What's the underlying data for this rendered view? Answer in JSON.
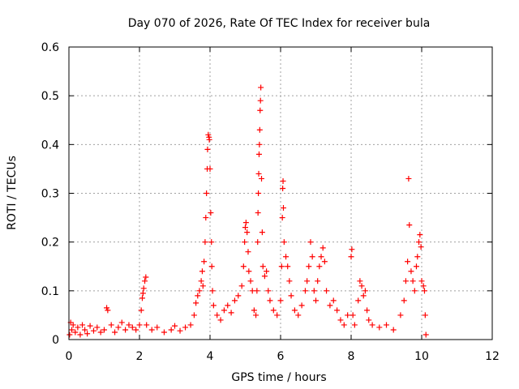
{
  "chart_data": {
    "type": "scatter",
    "title": "Day 070 of 2026, Rate Of TEC Index for receiver bula",
    "xlabel": "GPS time / hours",
    "ylabel": "ROTI / TECUs",
    "xlim": [
      0,
      12
    ],
    "ylim": [
      0,
      0.6
    ],
    "xticks": [
      "0",
      "2",
      "4",
      "6",
      "8",
      "10",
      "12"
    ],
    "yticks": [
      "0",
      "0.1",
      "0.2",
      "0.3",
      "0.4",
      "0.5",
      "0.6"
    ],
    "grid": true,
    "marker": "plus",
    "color": "#ff0000",
    "points": [
      [
        0.02,
        0.01
      ],
      [
        0.05,
        0.035
      ],
      [
        0.08,
        0.02
      ],
      [
        0.12,
        0.03
      ],
      [
        0.18,
        0.015
      ],
      [
        0.25,
        0.025
      ],
      [
        0.32,
        0.01
      ],
      [
        0.38,
        0.03
      ],
      [
        0.45,
        0.02
      ],
      [
        0.52,
        0.012
      ],
      [
        0.6,
        0.028
      ],
      [
        0.7,
        0.018
      ],
      [
        0.8,
        0.025
      ],
      [
        0.9,
        0.015
      ],
      [
        1.0,
        0.02
      ],
      [
        1.07,
        0.065
      ],
      [
        1.1,
        0.06
      ],
      [
        1.2,
        0.03
      ],
      [
        1.3,
        0.015
      ],
      [
        1.4,
        0.025
      ],
      [
        1.5,
        0.035
      ],
      [
        1.6,
        0.02
      ],
      [
        1.7,
        0.03
      ],
      [
        1.8,
        0.025
      ],
      [
        1.9,
        0.02
      ],
      [
        2.0,
        0.03
      ],
      [
        2.05,
        0.06
      ],
      [
        2.08,
        0.085
      ],
      [
        2.12,
        0.105
      ],
      [
        2.15,
        0.12
      ],
      [
        2.18,
        0.128
      ],
      [
        2.1,
        0.095
      ],
      [
        2.2,
        0.03
      ],
      [
        2.35,
        0.02
      ],
      [
        2.5,
        0.025
      ],
      [
        2.7,
        0.015
      ],
      [
        2.9,
        0.02
      ],
      [
        3.0,
        0.028
      ],
      [
        3.15,
        0.018
      ],
      [
        3.3,
        0.025
      ],
      [
        3.45,
        0.03
      ],
      [
        3.55,
        0.05
      ],
      [
        3.6,
        0.075
      ],
      [
        3.65,
        0.09
      ],
      [
        3.7,
        0.1
      ],
      [
        3.75,
        0.12
      ],
      [
        3.78,
        0.14
      ],
      [
        3.8,
        0.11
      ],
      [
        3.83,
        0.16
      ],
      [
        3.86,
        0.2
      ],
      [
        3.88,
        0.25
      ],
      [
        3.9,
        0.3
      ],
      [
        3.92,
        0.35
      ],
      [
        3.93,
        0.39
      ],
      [
        3.95,
        0.42
      ],
      [
        3.97,
        0.415
      ],
      [
        3.98,
        0.41
      ],
      [
        4.0,
        0.35
      ],
      [
        4.02,
        0.26
      ],
      [
        4.04,
        0.2
      ],
      [
        4.05,
        0.15
      ],
      [
        4.07,
        0.1
      ],
      [
        4.1,
        0.07
      ],
      [
        4.2,
        0.05
      ],
      [
        4.3,
        0.04
      ],
      [
        4.4,
        0.06
      ],
      [
        4.5,
        0.07
      ],
      [
        4.6,
        0.055
      ],
      [
        4.7,
        0.08
      ],
      [
        4.8,
        0.09
      ],
      [
        4.9,
        0.11
      ],
      [
        4.95,
        0.15
      ],
      [
        4.98,
        0.2
      ],
      [
        5.0,
        0.23
      ],
      [
        5.02,
        0.24
      ],
      [
        5.05,
        0.22
      ],
      [
        5.08,
        0.18
      ],
      [
        5.1,
        0.14
      ],
      [
        5.15,
        0.12
      ],
      [
        5.2,
        0.1
      ],
      [
        5.25,
        0.06
      ],
      [
        5.3,
        0.05
      ],
      [
        5.33,
        0.1
      ],
      [
        5.35,
        0.2
      ],
      [
        5.36,
        0.26
      ],
      [
        5.37,
        0.3
      ],
      [
        5.38,
        0.34
      ],
      [
        5.39,
        0.38
      ],
      [
        5.4,
        0.4
      ],
      [
        5.41,
        0.43
      ],
      [
        5.42,
        0.47
      ],
      [
        5.43,
        0.49
      ],
      [
        5.44,
        0.517
      ],
      [
        5.46,
        0.33
      ],
      [
        5.48,
        0.22
      ],
      [
        5.5,
        0.15
      ],
      [
        5.55,
        0.13
      ],
      [
        5.6,
        0.14
      ],
      [
        5.65,
        0.1
      ],
      [
        5.7,
        0.08
      ],
      [
        5.8,
        0.06
      ],
      [
        5.9,
        0.05
      ],
      [
        6.0,
        0.08
      ],
      [
        6.03,
        0.15
      ],
      [
        6.05,
        0.25
      ],
      [
        6.06,
        0.31
      ],
      [
        6.07,
        0.325
      ],
      [
        6.08,
        0.27
      ],
      [
        6.1,
        0.2
      ],
      [
        6.15,
        0.17
      ],
      [
        6.2,
        0.15
      ],
      [
        6.25,
        0.12
      ],
      [
        6.3,
        0.09
      ],
      [
        6.4,
        0.06
      ],
      [
        6.5,
        0.05
      ],
      [
        6.6,
        0.07
      ],
      [
        6.7,
        0.1
      ],
      [
        6.75,
        0.12
      ],
      [
        6.8,
        0.15
      ],
      [
        6.85,
        0.2
      ],
      [
        6.9,
        0.17
      ],
      [
        6.95,
        0.1
      ],
      [
        7.0,
        0.08
      ],
      [
        7.05,
        0.12
      ],
      [
        7.1,
        0.15
      ],
      [
        7.15,
        0.17
      ],
      [
        7.2,
        0.188
      ],
      [
        7.25,
        0.16
      ],
      [
        7.3,
        0.1
      ],
      [
        7.4,
        0.07
      ],
      [
        7.5,
        0.08
      ],
      [
        7.6,
        0.06
      ],
      [
        7.7,
        0.04
      ],
      [
        7.8,
        0.03
      ],
      [
        7.9,
        0.05
      ],
      [
        8.0,
        0.17
      ],
      [
        8.02,
        0.185
      ],
      [
        8.05,
        0.05
      ],
      [
        8.1,
        0.03
      ],
      [
        8.2,
        0.08
      ],
      [
        8.25,
        0.12
      ],
      [
        8.3,
        0.11
      ],
      [
        8.35,
        0.09
      ],
      [
        8.4,
        0.1
      ],
      [
        8.45,
        0.06
      ],
      [
        8.5,
        0.04
      ],
      [
        8.6,
        0.03
      ],
      [
        8.8,
        0.025
      ],
      [
        9.0,
        0.03
      ],
      [
        9.2,
        0.02
      ],
      [
        9.4,
        0.05
      ],
      [
        9.5,
        0.08
      ],
      [
        9.55,
        0.12
      ],
      [
        9.6,
        0.16
      ],
      [
        9.63,
        0.33
      ],
      [
        9.65,
        0.235
      ],
      [
        9.7,
        0.14
      ],
      [
        9.75,
        0.12
      ],
      [
        9.8,
        0.1
      ],
      [
        9.85,
        0.15
      ],
      [
        9.88,
        0.17
      ],
      [
        9.92,
        0.2
      ],
      [
        9.95,
        0.215
      ],
      [
        9.98,
        0.19
      ],
      [
        10.0,
        0.12
      ],
      [
        10.05,
        0.11
      ],
      [
        10.08,
        0.1
      ],
      [
        10.1,
        0.05
      ],
      [
        10.12,
        0.01
      ]
    ]
  }
}
